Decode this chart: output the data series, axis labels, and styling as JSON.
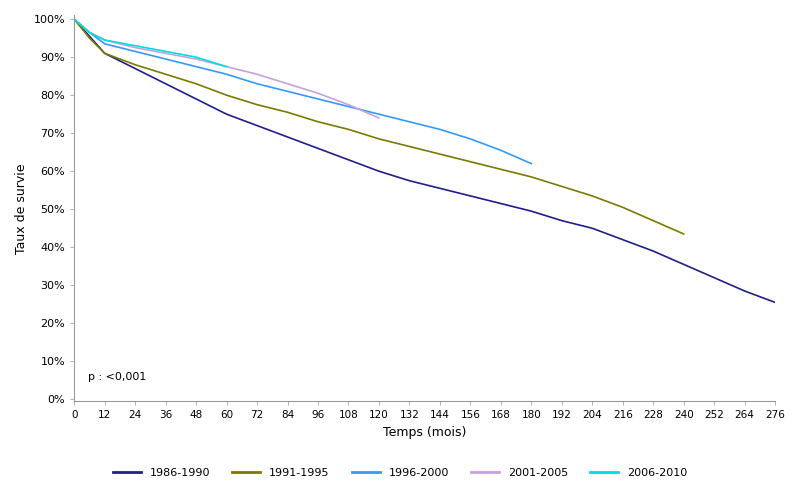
{
  "title": "",
  "xlabel": "Temps (mois)",
  "ylabel": "Taux de survie",
  "p_label": "p : <0,001",
  "xlim": [
    0,
    276
  ],
  "ylim": [
    -0.005,
    1.01
  ],
  "xticks": [
    0,
    12,
    24,
    36,
    48,
    60,
    72,
    84,
    96,
    108,
    120,
    132,
    144,
    156,
    168,
    180,
    192,
    204,
    216,
    228,
    240,
    252,
    264,
    276
  ],
  "yticks": [
    0.0,
    0.1,
    0.2,
    0.3,
    0.4,
    0.5,
    0.6,
    0.7,
    0.8,
    0.9,
    1.0
  ],
  "series": [
    {
      "label": "1986-1990",
      "color": "#1f1f8c",
      "x": [
        0,
        6,
        12,
        24,
        36,
        48,
        60,
        72,
        84,
        96,
        108,
        120,
        132,
        144,
        156,
        168,
        180,
        192,
        204,
        216,
        228,
        240,
        252,
        264,
        276
      ],
      "y": [
        1.0,
        0.955,
        0.91,
        0.87,
        0.83,
        0.79,
        0.75,
        0.72,
        0.69,
        0.66,
        0.63,
        0.6,
        0.575,
        0.555,
        0.535,
        0.515,
        0.495,
        0.47,
        0.45,
        0.42,
        0.39,
        0.355,
        0.32,
        0.285,
        0.255
      ]
    },
    {
      "label": "1991-1995",
      "color": "#7a7a00",
      "x": [
        0,
        6,
        12,
        24,
        36,
        48,
        60,
        72,
        84,
        96,
        108,
        120,
        132,
        144,
        156,
        168,
        180,
        192,
        204,
        216,
        228,
        240
      ],
      "y": [
        1.0,
        0.95,
        0.91,
        0.88,
        0.855,
        0.83,
        0.8,
        0.775,
        0.755,
        0.73,
        0.71,
        0.685,
        0.665,
        0.645,
        0.625,
        0.605,
        0.585,
        0.56,
        0.535,
        0.505,
        0.47,
        0.435
      ]
    },
    {
      "label": "1996-2000",
      "color": "#3399ff",
      "x": [
        0,
        6,
        12,
        24,
        36,
        48,
        60,
        72,
        84,
        96,
        108,
        120,
        132,
        144,
        156,
        168,
        180
      ],
      "y": [
        1.0,
        0.965,
        0.935,
        0.915,
        0.895,
        0.875,
        0.855,
        0.83,
        0.81,
        0.79,
        0.77,
        0.75,
        0.73,
        0.71,
        0.685,
        0.655,
        0.62
      ]
    },
    {
      "label": "2001-2005",
      "color": "#c8a0e0",
      "x": [
        0,
        6,
        12,
        24,
        36,
        48,
        60,
        72,
        84,
        96,
        108,
        120
      ],
      "y": [
        1.0,
        0.965,
        0.945,
        0.925,
        0.91,
        0.895,
        0.875,
        0.855,
        0.83,
        0.805,
        0.775,
        0.74
      ]
    },
    {
      "label": "2006-2010",
      "color": "#00dddd",
      "x": [
        0,
        6,
        12,
        24,
        36,
        48,
        60
      ],
      "y": [
        1.0,
        0.965,
        0.945,
        0.93,
        0.915,
        0.9,
        0.875
      ]
    }
  ],
  "legend_ncol": 5,
  "figsize": [
    8.0,
    4.88
  ],
  "dpi": 100
}
